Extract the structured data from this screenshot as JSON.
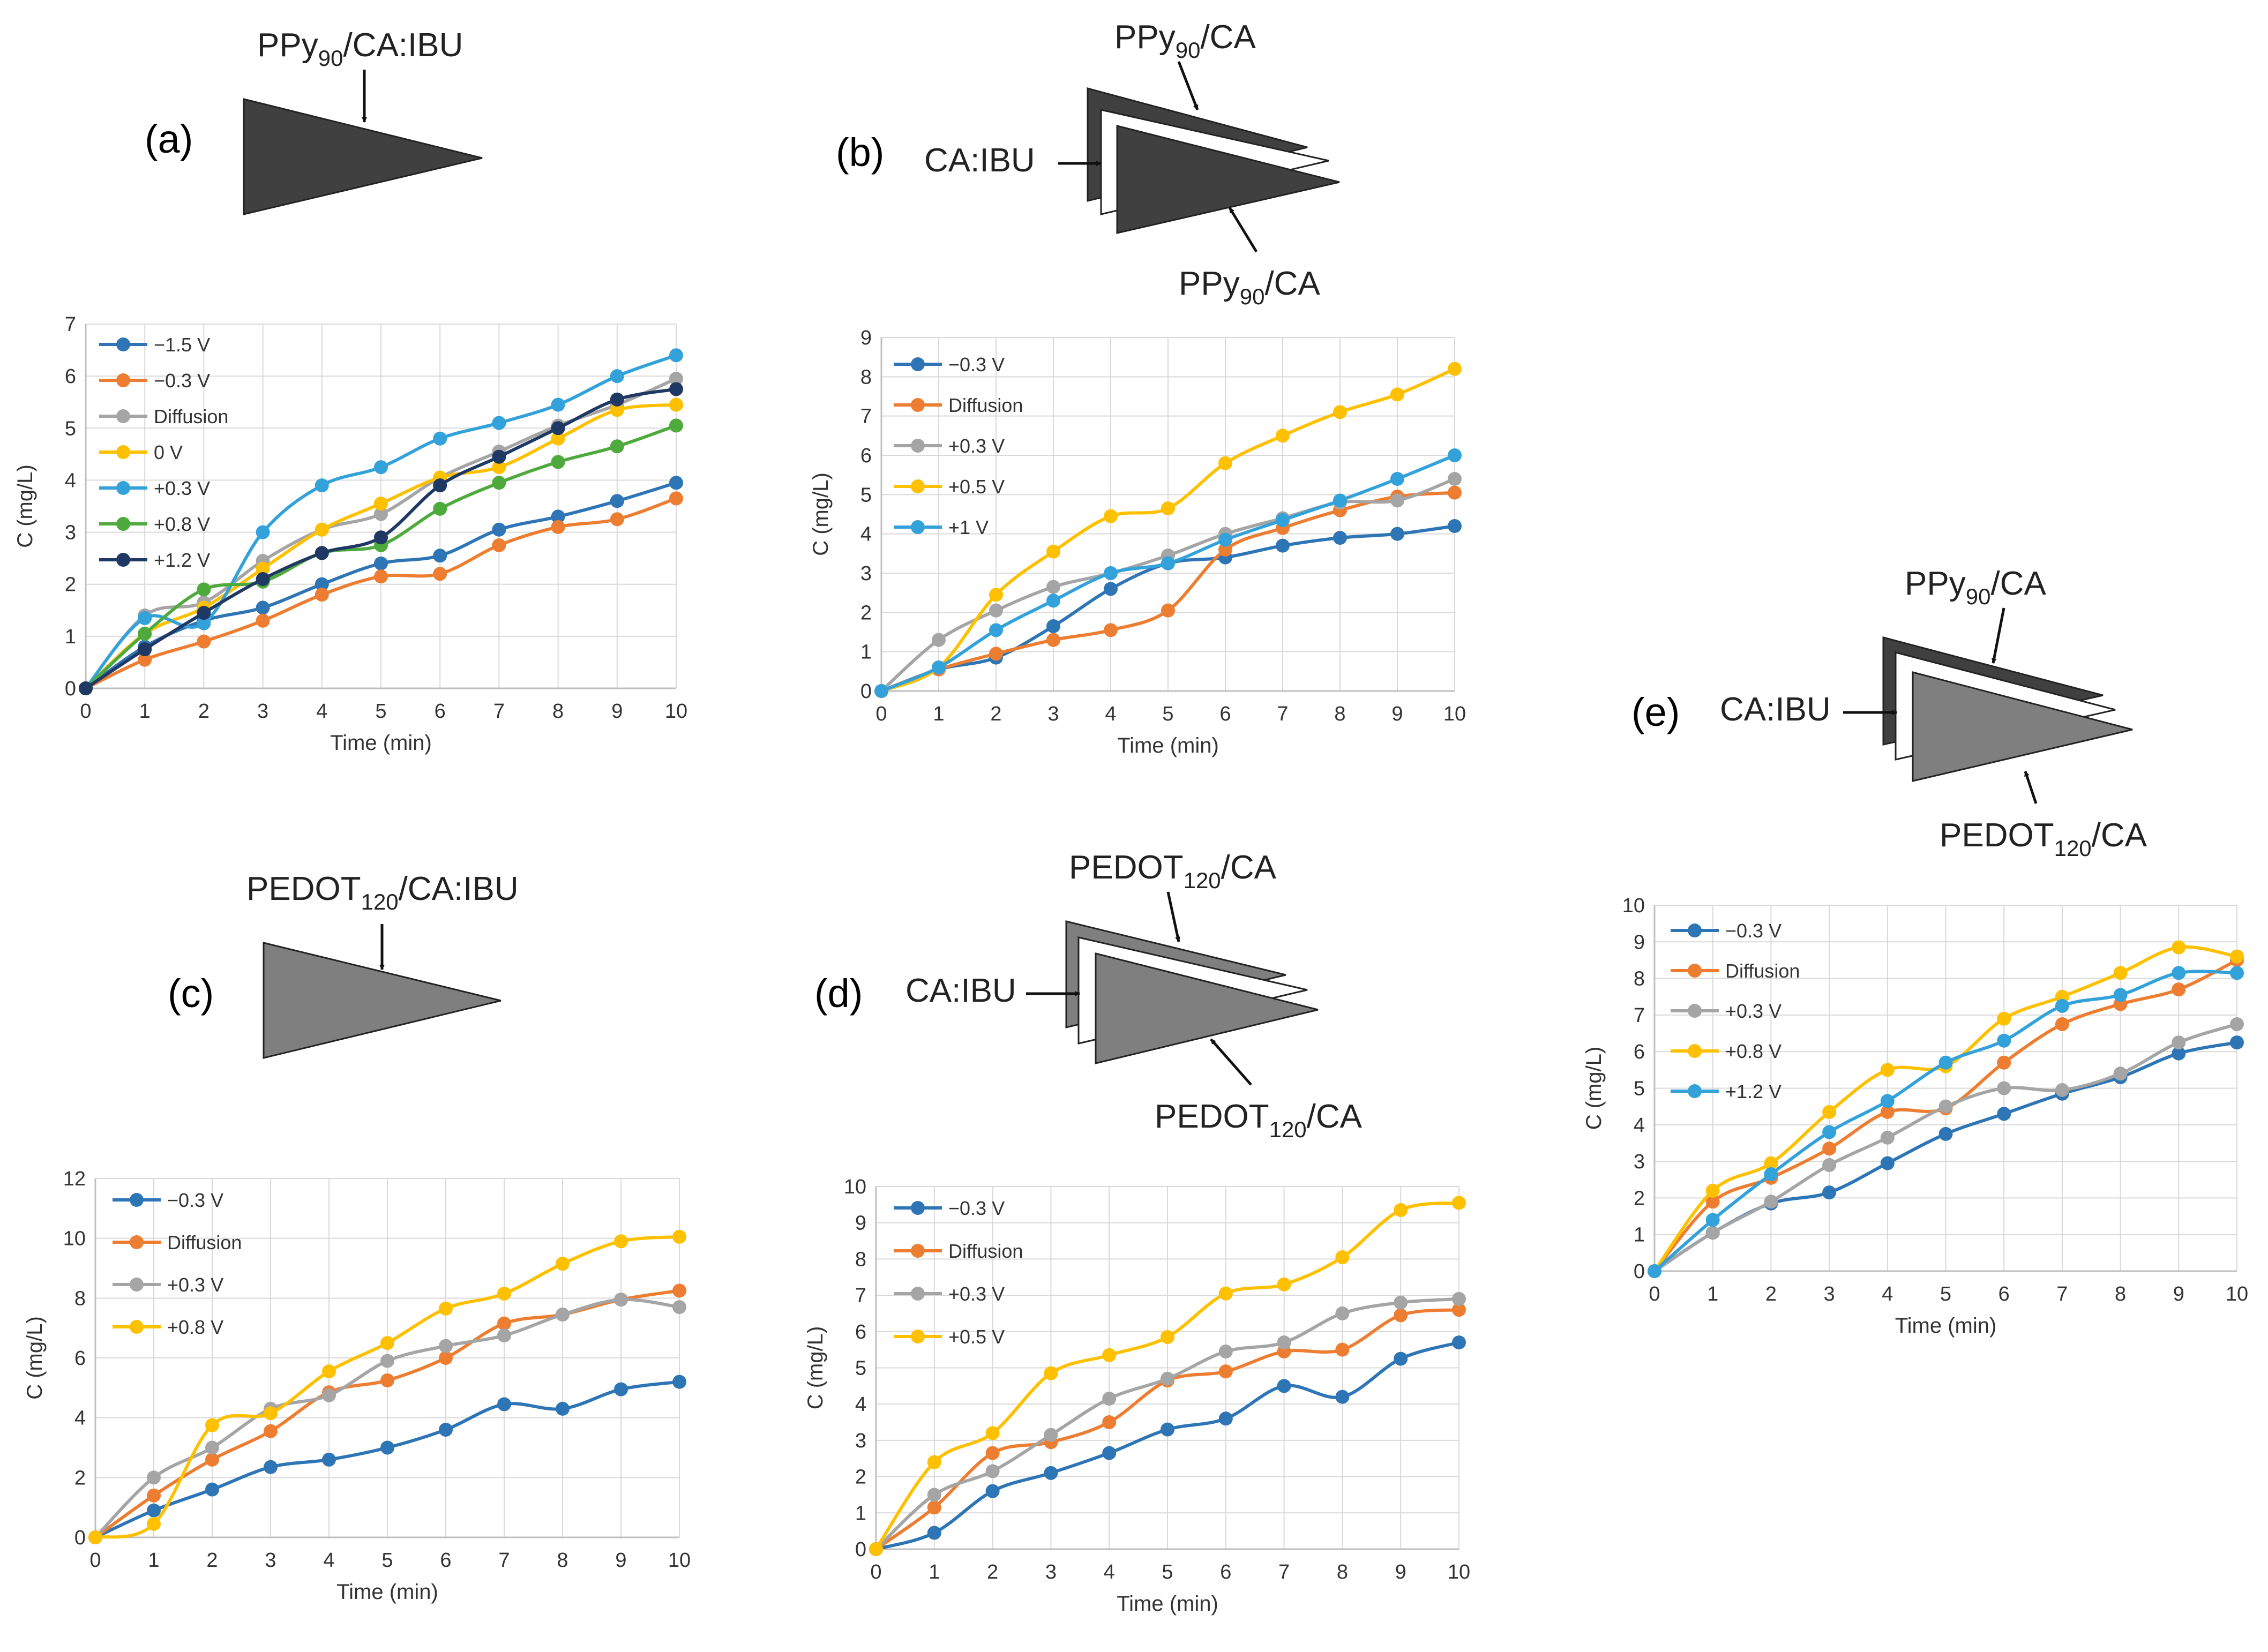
{
  "panels": [
    {
      "id": "a",
      "letter": "(a)",
      "layers": [
        {
          "text": "PPy",
          "sub": "90",
          "post": "/CA:IBU"
        }
      ]
    },
    {
      "id": "b",
      "letter": "(b)",
      "layers": [
        {
          "text": "PPy",
          "sub": "90",
          "post": "/CA"
        },
        {
          "text": "CA:IBU",
          "sub": "",
          "post": ""
        },
        {
          "text": "PPy",
          "sub": "90",
          "post": "/CA"
        }
      ]
    },
    {
      "id": "c",
      "letter": "(c)",
      "layers": [
        {
          "text": "PEDOT",
          "sub": "120",
          "post": "/CA:IBU"
        }
      ]
    },
    {
      "id": "d",
      "letter": "(d)",
      "layers": [
        {
          "text": "PEDOT",
          "sub": "120",
          "post": "/CA"
        },
        {
          "text": "CA:IBU",
          "sub": "",
          "post": ""
        },
        {
          "text": "PEDOT",
          "sub": "120",
          "post": "/CA"
        }
      ]
    },
    {
      "id": "e",
      "letter": "(e)",
      "layers": [
        {
          "text": "PPy",
          "sub": "90",
          "post": "/CA"
        },
        {
          "text": "CA:IBU",
          "sub": "",
          "post": ""
        },
        {
          "text": "PEDOT",
          "sub": "120",
          "post": "/CA"
        }
      ]
    }
  ],
  "colors": {
    "blue": "#2E75B6",
    "orange": "#ED7D31",
    "gray": "#A5A5A5",
    "yellow": "#FFC000",
    "lightblue": "#33A2DA",
    "green": "#4EAA3C",
    "navy": "#1F3864",
    "dark_fill": "#404040",
    "mid_fill": "#7F7F7F",
    "grid": "#D9D9D9"
  },
  "chart_data": [
    {
      "panel": "a",
      "type": "line",
      "xlabel": "Time (min)",
      "ylabel": "C (mg/L)",
      "x": [
        0,
        1,
        2,
        3,
        4,
        5,
        6,
        7,
        8,
        9,
        10
      ],
      "xlim": [
        0,
        10
      ],
      "ylim": [
        0,
        7
      ],
      "ystep": 1,
      "series": [
        {
          "name": "−1.5 V",
          "color": "blue",
          "values": [
            0,
            0.8,
            1.3,
            1.55,
            2.0,
            2.4,
            2.55,
            3.05,
            3.3,
            3.6,
            3.95
          ]
        },
        {
          "name": "−0.3 V",
          "color": "orange",
          "values": [
            0,
            0.55,
            0.9,
            1.3,
            1.8,
            2.15,
            2.2,
            2.75,
            3.1,
            3.25,
            3.65
          ]
        },
        {
          "name": "Diffusion",
          "color": "gray",
          "values": [
            0,
            1.4,
            1.65,
            2.45,
            3.05,
            3.35,
            4.05,
            4.55,
            5.05,
            5.45,
            5.95
          ]
        },
        {
          "name": "0 V",
          "color": "yellow",
          "values": [
            0,
            1.05,
            1.55,
            2.3,
            3.05,
            3.55,
            4.05,
            4.25,
            4.8,
            5.35,
            5.45
          ]
        },
        {
          "name": "+0.3 V",
          "color": "lightblue",
          "values": [
            0,
            1.35,
            1.25,
            3.0,
            3.9,
            4.25,
            4.8,
            5.1,
            5.45,
            6.0,
            6.4
          ]
        },
        {
          "name": "+0.8 V",
          "color": "green",
          "values": [
            0,
            1.05,
            1.9,
            2.05,
            2.6,
            2.75,
            3.45,
            3.95,
            4.35,
            4.65,
            5.05
          ]
        },
        {
          "name": "+1.2 V",
          "color": "navy",
          "values": [
            0,
            0.75,
            1.45,
            2.1,
            2.6,
            2.9,
            3.9,
            4.45,
            5.0,
            5.55,
            5.75
          ]
        }
      ]
    },
    {
      "panel": "b",
      "type": "line",
      "xlabel": "Time (min)",
      "ylabel": "C (mg/L)",
      "x": [
        0,
        1,
        2,
        3,
        4,
        5,
        6,
        7,
        8,
        9,
        10
      ],
      "xlim": [
        0,
        10
      ],
      "ylim": [
        0,
        9
      ],
      "ystep": 1,
      "series": [
        {
          "name": "−0.3 V",
          "color": "blue",
          "values": [
            0,
            0.55,
            0.85,
            1.65,
            2.6,
            3.25,
            3.4,
            3.7,
            3.9,
            4.0,
            4.2
          ]
        },
        {
          "name": "Diffusion",
          "color": "orange",
          "values": [
            0,
            0.55,
            0.95,
            1.3,
            1.55,
            2.05,
            3.6,
            4.15,
            4.6,
            4.95,
            5.05
          ]
        },
        {
          "name": "+0.3 V",
          "color": "gray",
          "values": [
            0,
            1.3,
            2.05,
            2.65,
            3.0,
            3.45,
            4.0,
            4.4,
            4.8,
            4.85,
            5.4
          ]
        },
        {
          "name": "+0.5 V",
          "color": "yellow",
          "values": [
            0,
            0.6,
            2.45,
            3.55,
            4.45,
            4.65,
            5.8,
            6.5,
            7.1,
            7.55,
            8.2
          ]
        },
        {
          "name": "+1 V",
          "color": "lightblue",
          "values": [
            0,
            0.6,
            1.55,
            2.3,
            3.0,
            3.25,
            3.85,
            4.35,
            4.85,
            5.4,
            6.0
          ]
        }
      ]
    },
    {
      "panel": "c",
      "type": "line",
      "xlabel": "Time (min)",
      "ylabel": "C (mg/L)",
      "x": [
        0,
        1,
        2,
        3,
        4,
        5,
        6,
        7,
        8,
        9,
        10
      ],
      "xlim": [
        0,
        10
      ],
      "ylim": [
        0,
        12
      ],
      "ystep": 2,
      "series": [
        {
          "name": "−0.3 V",
          "color": "blue",
          "values": [
            0,
            0.9,
            1.6,
            2.35,
            2.6,
            3.0,
            3.6,
            4.45,
            4.3,
            4.95,
            5.2
          ]
        },
        {
          "name": "Diffusion",
          "color": "orange",
          "values": [
            0,
            1.4,
            2.6,
            3.55,
            4.85,
            5.25,
            6.0,
            7.15,
            7.45,
            7.95,
            8.25
          ]
        },
        {
          "name": "+0.3 V",
          "color": "gray",
          "values": [
            0,
            2.0,
            3.0,
            4.3,
            4.75,
            5.9,
            6.4,
            6.75,
            7.45,
            7.95,
            7.7
          ]
        },
        {
          "name": "+0.8 V",
          "color": "yellow",
          "values": [
            0,
            0.45,
            3.75,
            4.15,
            5.55,
            6.5,
            7.65,
            8.15,
            9.15,
            9.9,
            10.05
          ]
        }
      ]
    },
    {
      "panel": "d",
      "type": "line",
      "xlabel": "Time (min)",
      "ylabel": "C (mg/L)",
      "x": [
        0,
        1,
        2,
        3,
        4,
        5,
        6,
        7,
        8,
        9,
        10
      ],
      "xlim": [
        0,
        10
      ],
      "ylim": [
        0,
        10
      ],
      "ystep": 1,
      "series": [
        {
          "name": "−0.3 V",
          "color": "blue",
          "values": [
            0,
            0.45,
            1.6,
            2.1,
            2.65,
            3.3,
            3.6,
            4.5,
            4.2,
            5.25,
            5.7
          ]
        },
        {
          "name": "Diffusion",
          "color": "orange",
          "values": [
            0,
            1.15,
            2.65,
            2.95,
            3.5,
            4.65,
            4.9,
            5.45,
            5.5,
            6.45,
            6.6
          ]
        },
        {
          "name": "+0.3 V",
          "color": "gray",
          "values": [
            0,
            1.5,
            2.15,
            3.15,
            4.15,
            4.7,
            5.45,
            5.7,
            6.5,
            6.8,
            6.9
          ]
        },
        {
          "name": "+0.5 V",
          "color": "yellow",
          "values": [
            0,
            2.4,
            3.2,
            4.85,
            5.35,
            5.85,
            7.05,
            7.3,
            8.05,
            9.35,
            9.55
          ]
        }
      ]
    },
    {
      "panel": "e",
      "type": "line",
      "xlabel": "Time (min)",
      "ylabel": "C (mg/L)",
      "x": [
        0,
        1,
        2,
        3,
        4,
        5,
        6,
        7,
        8,
        9,
        10
      ],
      "xlim": [
        0,
        10
      ],
      "ylim": [
        0,
        10
      ],
      "ystep": 1,
      "series": [
        {
          "name": "−0.3 V",
          "color": "blue",
          "values": [
            0,
            1.05,
            1.85,
            2.15,
            2.95,
            3.75,
            4.3,
            4.85,
            5.3,
            5.95,
            6.25
          ]
        },
        {
          "name": "Diffusion",
          "color": "orange",
          "values": [
            0,
            1.9,
            2.55,
            3.35,
            4.35,
            4.45,
            5.7,
            6.75,
            7.3,
            7.7,
            8.5
          ]
        },
        {
          "name": "+0.3 V",
          "color": "gray",
          "values": [
            0,
            1.05,
            1.9,
            2.9,
            3.65,
            4.5,
            5.0,
            4.95,
            5.4,
            6.25,
            6.75
          ]
        },
        {
          "name": "+0.8 V",
          "color": "yellow",
          "values": [
            0,
            2.2,
            2.95,
            4.35,
            5.5,
            5.6,
            6.9,
            7.5,
            8.15,
            8.85,
            8.6
          ]
        },
        {
          "name": "+1.2 V",
          "color": "lightblue",
          "values": [
            0,
            1.4,
            2.65,
            3.8,
            4.65,
            5.7,
            6.3,
            7.25,
            7.55,
            8.15,
            8.15
          ]
        }
      ]
    }
  ]
}
